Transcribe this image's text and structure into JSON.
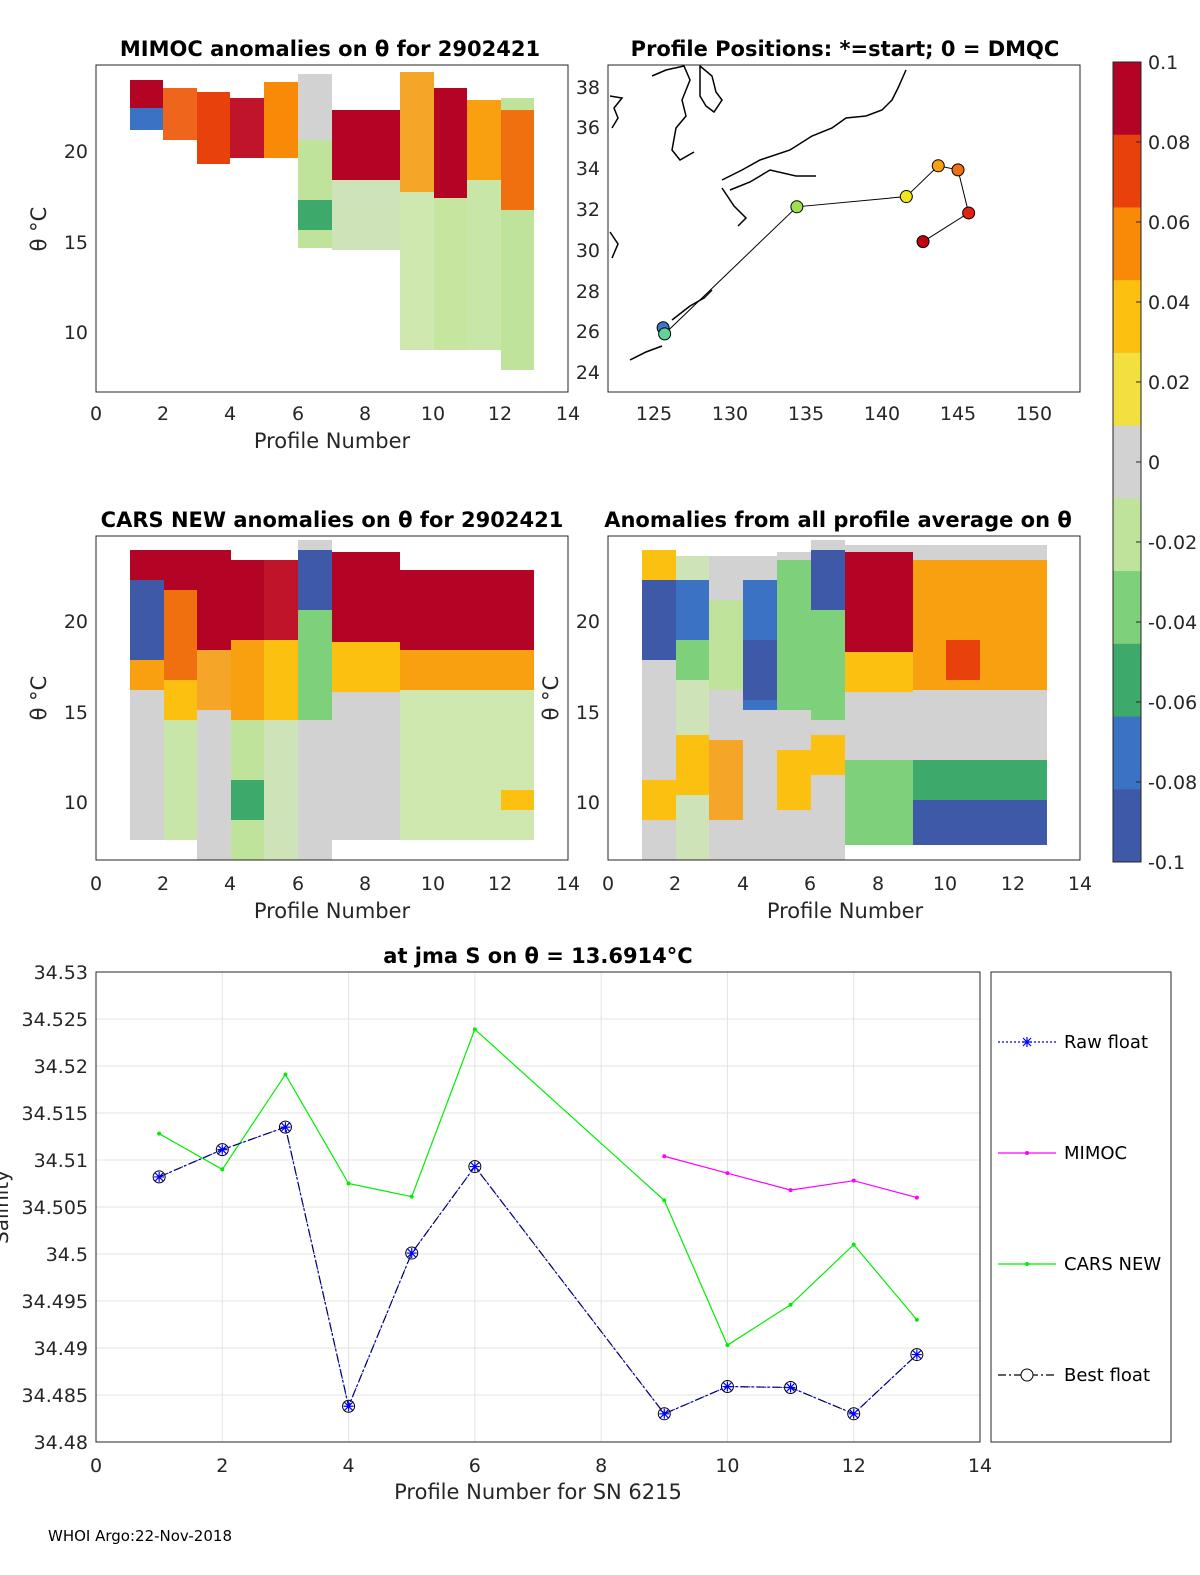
{
  "footer": "WHOI Argo:22-Nov-2018",
  "panels": {
    "mimoc": {
      "title": "MIMOC anomalies on θ  for 2902421",
      "xlabel": "Profile Number",
      "ylabel": "θ °C",
      "xticks": [
        "0",
        "2",
        "4",
        "6",
        "8",
        "10",
        "12",
        "14"
      ],
      "yticks": [
        "10",
        "15",
        "20"
      ]
    },
    "positions": {
      "title": "Profile Positions: *=start; 0 = DMQC",
      "xticks": [
        "125",
        "130",
        "135",
        "140",
        "145",
        "150"
      ],
      "yticks": [
        "24",
        "26",
        "28",
        "30",
        "32",
        "34",
        "36",
        "38"
      ]
    },
    "cars": {
      "title": "CARS NEW anomalies on θ for 2902421",
      "xlabel": "Profile Number",
      "ylabel": "θ °C",
      "xticks": [
        "0",
        "2",
        "4",
        "6",
        "8",
        "10",
        "12",
        "14"
      ],
      "yticks": [
        "10",
        "15",
        "20"
      ]
    },
    "allavg": {
      "title": "Anomalies from all profile average on θ",
      "xlabel": "Profile Number",
      "ylabel": "θ °C",
      "xticks": [
        "0",
        "2",
        "4",
        "6",
        "8",
        "10",
        "12",
        "14"
      ],
      "yticks": [
        "10",
        "15",
        "20"
      ]
    }
  },
  "colorbar": {
    "ticks": [
      "0.1",
      "0.08",
      "0.06",
      "0.04",
      "0.02",
      "0",
      "-0.02",
      "-0.04",
      "-0.06",
      "-0.08",
      "-0.1"
    ],
    "colors": [
      "#b40426",
      "#e8410c",
      "#f88a08",
      "#fcc010",
      "#f2e040",
      "#d2d2d2",
      "#bfe39a",
      "#7fd07a",
      "#3daa6c",
      "#3b72c4",
      "#3d59a8"
    ]
  },
  "chart_data": {
    "type": "line",
    "title": "at jma S on θ = 13.6914°C",
    "xlabel": "Profile Number for SN 6215",
    "ylabel": "Salinity",
    "xlim": [
      0,
      14
    ],
    "ylim": [
      34.48,
      34.53
    ],
    "xticks": [
      "0",
      "2",
      "4",
      "6",
      "8",
      "10",
      "12",
      "14"
    ],
    "yticks": [
      "34.48",
      "34.485",
      "34.49",
      "34.495",
      "34.5",
      "34.505",
      "34.51",
      "34.515",
      "34.52",
      "34.525",
      "34.53"
    ],
    "series": [
      {
        "name": "Raw float",
        "color": "#0000ff",
        "x": [
          1,
          2,
          3,
          4,
          5,
          6,
          9,
          10,
          11,
          12,
          13
        ],
        "values": [
          34.5082,
          34.5111,
          34.5135,
          34.4838,
          34.5001,
          34.5093,
          34.483,
          34.4859,
          34.4858,
          34.483,
          34.4893
        ]
      },
      {
        "name": "MIMOC",
        "color": "#ff00ff",
        "x": [
          9,
          10,
          11,
          12,
          13
        ],
        "values": [
          34.5104,
          34.5086,
          34.5068,
          34.5078,
          34.506
        ]
      },
      {
        "name": "CARS NEW",
        "color": "#00ee00",
        "x": [
          1,
          2,
          3,
          4,
          5,
          6,
          9,
          10,
          11,
          12,
          13
        ],
        "values": [
          34.5128,
          34.509,
          34.5191,
          34.5075,
          34.5061,
          34.5239,
          34.5057,
          34.4903,
          34.4946,
          34.501,
          34.493
        ]
      },
      {
        "name": "Best float",
        "color": "#000000",
        "x": [
          1,
          2,
          3,
          4,
          5,
          6,
          9,
          10,
          11,
          12,
          13
        ],
        "values": [
          34.5082,
          34.5111,
          34.5135,
          34.4838,
          34.5001,
          34.5093,
          34.483,
          34.4859,
          34.4858,
          34.483,
          34.4893
        ]
      }
    ],
    "profile_positions": {
      "lon": [
        125.6,
        125.7,
        134.4,
        141.6,
        143.7,
        145.0,
        145.7,
        142.7
      ],
      "lat": [
        26.5,
        26.2,
        32.4,
        32.9,
        34.4,
        34.2,
        32.1,
        30.7
      ],
      "colors": [
        "#3a78c8",
        "#62d49a",
        "#9fe050",
        "#f2e61c",
        "#f8a010",
        "#f07010",
        "#e02010",
        "#c00010"
      ]
    }
  }
}
